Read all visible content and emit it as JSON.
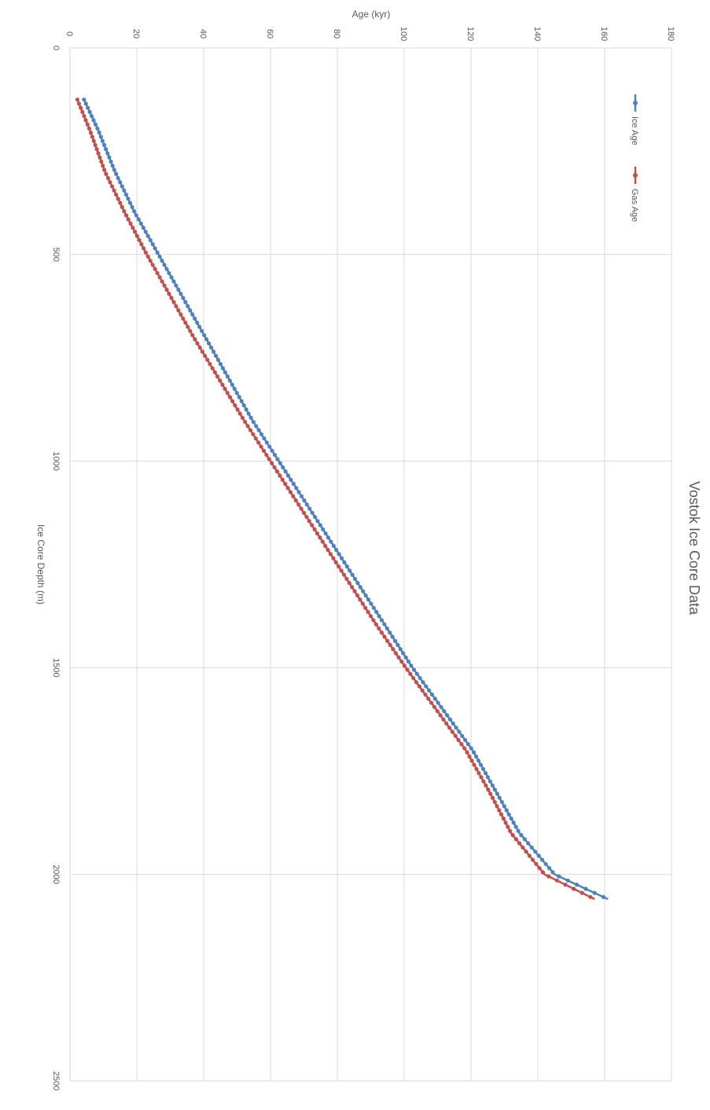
{
  "chart_data": {
    "type": "scatter",
    "orientation": "rotated-90-clockwise",
    "title": "Vostok Ice Core Data",
    "xlabel": "Ice Core Depth (m)",
    "ylabel": "Age (kyr)",
    "xlim": [
      0,
      2500
    ],
    "ylim": [
      0,
      180
    ],
    "x_ticks": [
      0,
      500,
      1000,
      1500,
      2000,
      2500
    ],
    "y_ticks": [
      0,
      20,
      40,
      60,
      80,
      100,
      120,
      140,
      160,
      180
    ],
    "grid": true,
    "legend_position": "top-right",
    "series": [
      {
        "name": "Ice Age",
        "color": "#4f81bd",
        "points": [
          [
            125,
            4.2
          ],
          [
            200,
            8.5
          ],
          [
            300,
            13.5
          ],
          [
            400,
            19.5
          ],
          [
            500,
            26.5
          ],
          [
            600,
            33.5
          ],
          [
            700,
            40.5
          ],
          [
            800,
            47.5
          ],
          [
            900,
            54.5
          ],
          [
            1000,
            62.5
          ],
          [
            1100,
            70.5
          ],
          [
            1200,
            78.5
          ],
          [
            1300,
            86.5
          ],
          [
            1400,
            94.5
          ],
          [
            1500,
            102.5
          ],
          [
            1600,
            111.5
          ],
          [
            1700,
            120.5
          ],
          [
            1800,
            127.5
          ],
          [
            1900,
            134.5
          ],
          [
            2000,
            145.0
          ],
          [
            2060,
            161.0
          ]
        ]
      },
      {
        "name": "Gas Age",
        "color": "#c0504d",
        "points": [
          [
            125,
            2.2
          ],
          [
            200,
            6.0
          ],
          [
            300,
            10.5
          ],
          [
            400,
            16.5
          ],
          [
            500,
            23.0
          ],
          [
            600,
            30.0
          ],
          [
            700,
            37.0
          ],
          [
            800,
            44.5
          ],
          [
            900,
            52.0
          ],
          [
            1000,
            60.0
          ],
          [
            1100,
            68.0
          ],
          [
            1200,
            76.0
          ],
          [
            1300,
            84.0
          ],
          [
            1400,
            92.0
          ],
          [
            1500,
            100.5
          ],
          [
            1600,
            109.5
          ],
          [
            1700,
            118.5
          ],
          [
            1800,
            125.5
          ],
          [
            1900,
            132.0
          ],
          [
            2000,
            142.0
          ],
          [
            2060,
            157.0
          ]
        ]
      }
    ]
  }
}
